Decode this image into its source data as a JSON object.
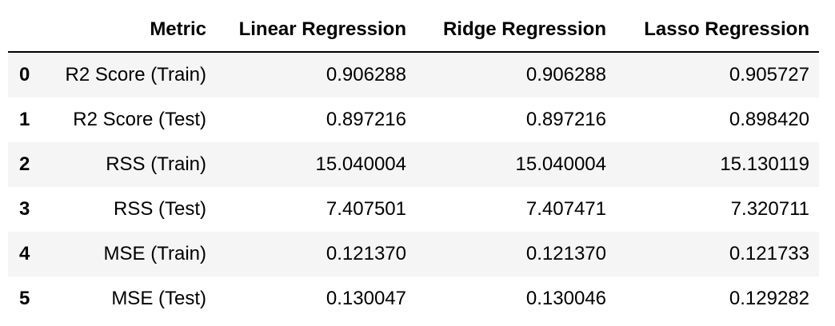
{
  "table": {
    "columns": [
      "",
      "Metric",
      "Linear Regression",
      "Ridge Regression",
      "Lasso Regression"
    ],
    "rows": [
      {
        "index": "0",
        "metric": "R2 Score (Train)",
        "linear": "0.906288",
        "ridge": "0.906288",
        "lasso": "0.905727"
      },
      {
        "index": "1",
        "metric": "R2 Score (Test)",
        "linear": "0.897216",
        "ridge": "0.897216",
        "lasso": "0.898420"
      },
      {
        "index": "2",
        "metric": "RSS (Train)",
        "linear": "15.040004",
        "ridge": "15.040004",
        "lasso": "15.130119"
      },
      {
        "index": "3",
        "metric": "RSS (Test)",
        "linear": "7.407501",
        "ridge": "7.407471",
        "lasso": "7.320711"
      },
      {
        "index": "4",
        "metric": "MSE (Train)",
        "linear": "0.121370",
        "ridge": "0.121370",
        "lasso": "0.121733"
      },
      {
        "index": "5",
        "metric": "MSE (Test)",
        "linear": "0.130047",
        "ridge": "0.130046",
        "lasso": "0.129282"
      }
    ]
  }
}
